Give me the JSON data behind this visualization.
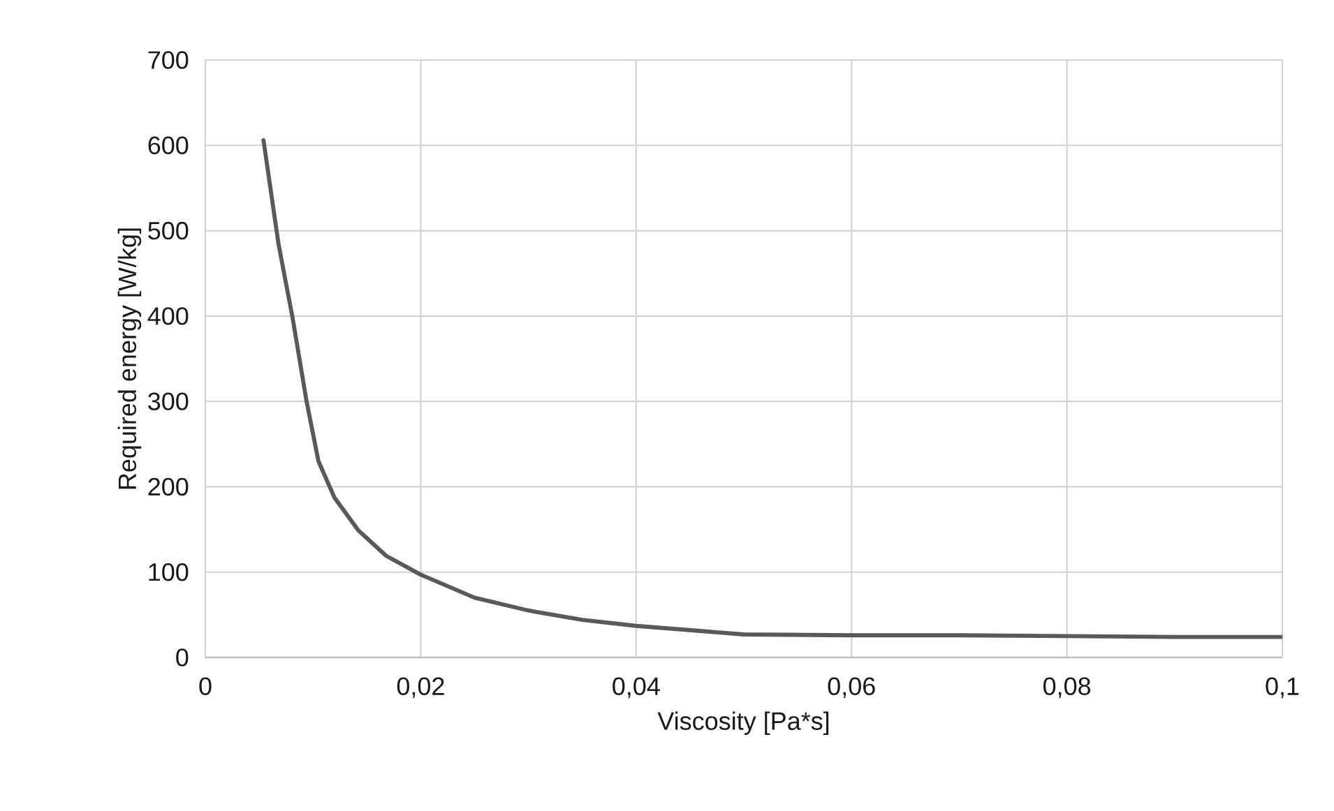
{
  "chart_data": {
    "type": "line",
    "xlabel": "Viscosity [Pa*s]",
    "ylabel": "Required energy [W/kg]",
    "x": [
      0.0054,
      0.0068,
      0.0081,
      0.0094,
      0.0105,
      0.012,
      0.0142,
      0.0168,
      0.02,
      0.025,
      0.03,
      0.035,
      0.04,
      0.05,
      0.06,
      0.07,
      0.08,
      0.09,
      0.1
    ],
    "series": [
      {
        "color": "#595959",
        "values": [
          606,
          484,
          398,
          300,
          230,
          187,
          149,
          119,
          97,
          70,
          55,
          44,
          37,
          27,
          26,
          26,
          25,
          24,
          24
        ]
      }
    ],
    "xlim": [
      0,
      0.1
    ],
    "ylim": [
      0,
      700
    ],
    "xticks": [
      0,
      {
        "value": 0.02,
        "label": "0,02"
      },
      {
        "value": 0.04,
        "label": "0,04"
      },
      {
        "value": 0.06,
        "label": "0,06"
      },
      {
        "value": 0.08,
        "label": "0,08"
      },
      {
        "value": 0.1,
        "label": "0,1"
      }
    ],
    "yticks": [
      0,
      100,
      200,
      300,
      400,
      500,
      600,
      700
    ],
    "grid": true,
    "marker": "none",
    "line_style": "solid"
  }
}
